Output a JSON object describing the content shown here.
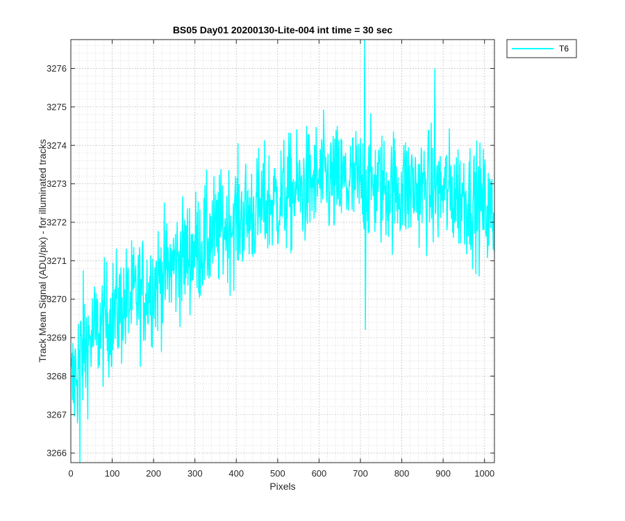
{
  "chart_data": {
    "type": "line",
    "title": "BS05 Day01 20200130-Lite-004 int time = 30 sec",
    "xlabel": "Pixels",
    "ylabel": "Track Mean Signal (ADU/pix) - for illuminated tracks",
    "xlim": [
      0,
      1024
    ],
    "ylim": [
      3265.75,
      3276.75
    ],
    "x_ticks": [
      0,
      100,
      200,
      300,
      400,
      500,
      600,
      700,
      800,
      900,
      1000
    ],
    "y_ticks": [
      3266,
      3267,
      3268,
      3269,
      3270,
      3271,
      3272,
      3273,
      3274,
      3275,
      3276
    ],
    "grid": true,
    "minor_grid": true,
    "legend_position": "outside-top-right",
    "series": [
      {
        "name": "T6",
        "color": "#00FFFF",
        "x_range": [
          1,
          1024
        ],
        "points": 1024,
        "trend_x": [
          0,
          10,
          25,
          50,
          100,
          150,
          200,
          250,
          300,
          350,
          400,
          450,
          500,
          550,
          600,
          650,
          700,
          750,
          800,
          850,
          900,
          950,
          1000,
          1024
        ],
        "trend_y": [
          3267.5,
          3268.0,
          3268.6,
          3269.0,
          3269.6,
          3270.0,
          3270.4,
          3270.9,
          3271.3,
          3271.7,
          3272.1,
          3272.3,
          3272.6,
          3272.8,
          3273.1,
          3273.0,
          3273.0,
          3272.9,
          3272.9,
          3272.9,
          3272.8,
          3272.7,
          3272.4,
          3272.0
        ],
        "noise_amplitude": 0.75,
        "extremes": [
          {
            "x": 710,
            "y": 3276.75
          },
          {
            "x": 880,
            "y": 3276.0
          },
          {
            "x": 22,
            "y": 3265.75
          },
          {
            "x": 712,
            "y": 3269.2
          }
        ]
      }
    ]
  }
}
